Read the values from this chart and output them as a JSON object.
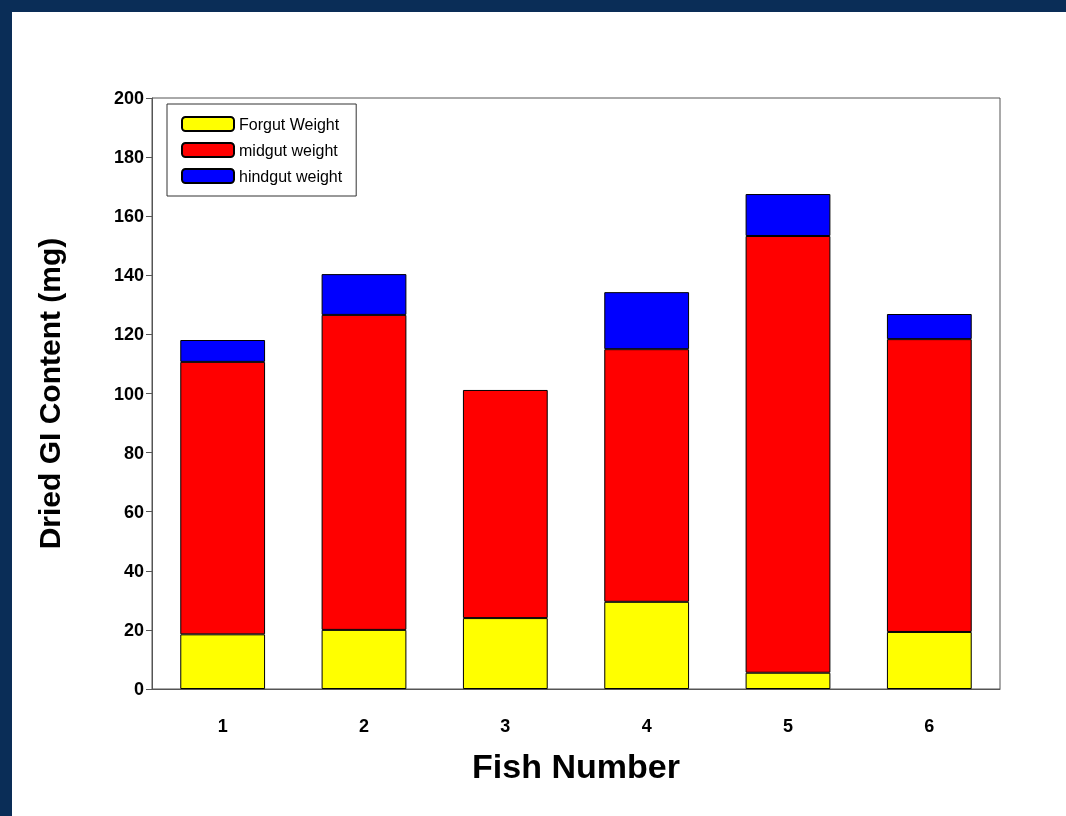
{
  "chart_data": {
    "type": "bar",
    "stacked": true,
    "xlabel": "Fish Number",
    "ylabel": "Dried GI Content (mg)",
    "categories": [
      "1",
      "2",
      "3",
      "4",
      "5",
      "6"
    ],
    "series": [
      {
        "name": "Forgut Weight",
        "color": "#ffff00",
        "values": [
          18.5,
          20,
          24,
          29.5,
          5.5,
          19.3
        ]
      },
      {
        "name": "midgut weight",
        "color": "#ff0000",
        "values": [
          92.2,
          106.6,
          77.2,
          85.5,
          147.8,
          99.1
        ]
      },
      {
        "name": "hindgut weight",
        "color": "#0000ff",
        "values": [
          7.4,
          13.8,
          null,
          19.3,
          14.2,
          8.5
        ]
      }
    ],
    "ylim": [
      0,
      200
    ],
    "yticks": [
      0,
      20,
      40,
      60,
      80,
      100,
      120,
      140,
      160,
      180,
      200
    ],
    "grid": false,
    "legend": "top left"
  }
}
